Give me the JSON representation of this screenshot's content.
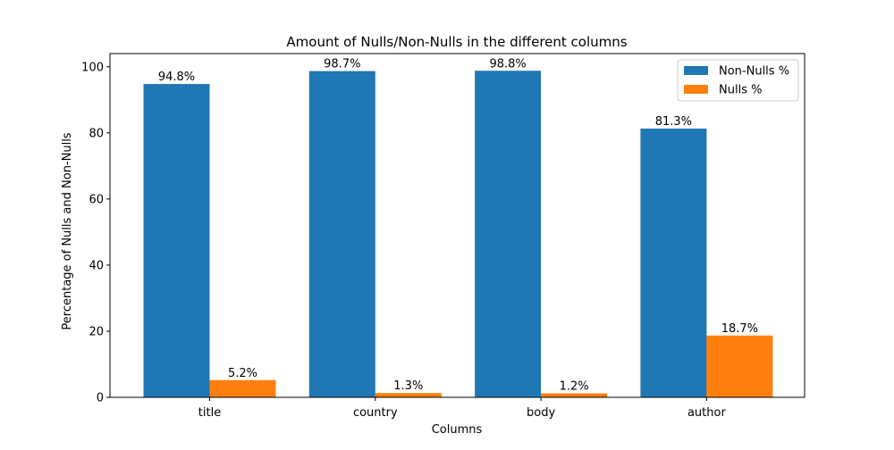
{
  "chart_data": {
    "type": "bar",
    "title": "Amount of Nulls/Non-Nulls in the different columns",
    "xlabel": "Columns",
    "ylabel": "Percentage of Nulls and Non-Nulls",
    "categories": [
      "title",
      "country",
      "body",
      "author"
    ],
    "series": [
      {
        "name": "Non-Nulls %",
        "color": "#1f77b4",
        "values": [
          94.8,
          98.7,
          98.8,
          81.3
        ],
        "labels": [
          "94.8%",
          "98.7%",
          "98.8%",
          "81.3%"
        ]
      },
      {
        "name": "Nulls %",
        "color": "#ff7f0e",
        "values": [
          5.2,
          1.3,
          1.2,
          18.7
        ],
        "labels": [
          "5.2%",
          "1.3%",
          "1.2%",
          "18.7%"
        ]
      }
    ],
    "ylim": [
      0,
      104
    ],
    "yticks": [
      0,
      20,
      40,
      60,
      80,
      100
    ],
    "grid": false,
    "legend_position": "top-right"
  }
}
